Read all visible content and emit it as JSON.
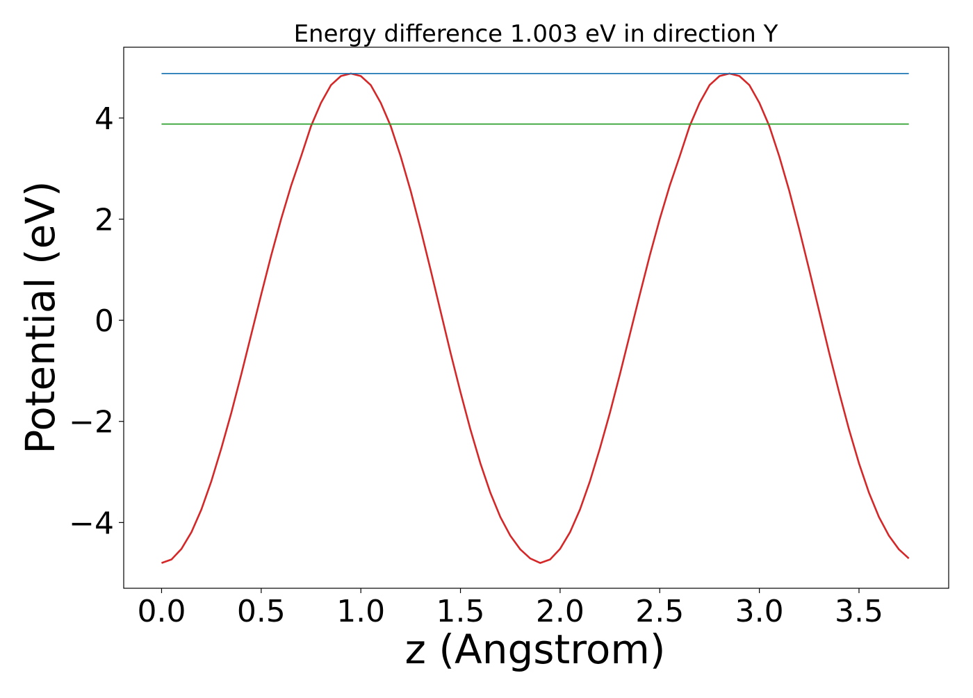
{
  "chart_data": {
    "type": "line",
    "title": "Energy difference 1.003 eV in direction Y",
    "xlabel": "z (Angstrom)",
    "ylabel": "Potential (eV)",
    "xlim": [
      -0.19,
      3.95
    ],
    "ylim": [
      -5.3,
      5.4
    ],
    "x_ticks": [
      0.0,
      0.5,
      1.0,
      1.5,
      2.0,
      2.5,
      3.0,
      3.5
    ],
    "x_tick_labels": [
      "0.0",
      "0.5",
      "1.0",
      "1.5",
      "2.0",
      "2.5",
      "3.0",
      "3.5"
    ],
    "y_ticks": [
      -4,
      -2,
      0,
      2,
      4
    ],
    "y_tick_labels": [
      "−4",
      "−2",
      "0",
      "2",
      "4"
    ],
    "grid": false,
    "legend": "none",
    "series": [
      {
        "color": "#d62728",
        "x": [
          0.0,
          0.05,
          0.1,
          0.15,
          0.2,
          0.25,
          0.3,
          0.35,
          0.4,
          0.45,
          0.5,
          0.55,
          0.6,
          0.65,
          0.7,
          0.75,
          0.8,
          0.85,
          0.9,
          0.95,
          1.0,
          1.05,
          1.1,
          1.15,
          1.2,
          1.25,
          1.3,
          1.35,
          1.4,
          1.45,
          1.5,
          1.55,
          1.6,
          1.65,
          1.7,
          1.75,
          1.8,
          1.85,
          1.9,
          1.95,
          2.0,
          2.05,
          2.1,
          2.15,
          2.2,
          2.25,
          2.3,
          2.35,
          2.4,
          2.45,
          2.5,
          2.55,
          2.6,
          2.65,
          2.7,
          2.75,
          2.8,
          2.85,
          2.9,
          2.95,
          3.0,
          3.05,
          3.1,
          3.15,
          3.2,
          3.25,
          3.3,
          3.35,
          3.4,
          3.45,
          3.5,
          3.55,
          3.6,
          3.65,
          3.7,
          3.75
        ],
        "y": [
          -4.8,
          -4.73,
          -4.52,
          -4.19,
          -3.74,
          -3.18,
          -2.53,
          -1.83,
          -1.07,
          -0.28,
          0.51,
          1.28,
          2.0,
          2.66,
          3.24,
          3.84,
          4.3,
          4.65,
          4.83,
          4.88,
          4.83,
          4.65,
          4.3,
          3.84,
          3.24,
          2.56,
          1.8,
          1.0,
          0.18,
          -0.64,
          -1.42,
          -2.16,
          -2.83,
          -3.41,
          -3.89,
          -4.26,
          -4.53,
          -4.71,
          -4.8,
          -4.73,
          -4.52,
          -4.19,
          -3.74,
          -3.18,
          -2.53,
          -1.83,
          -1.07,
          -0.28,
          0.51,
          1.28,
          2.0,
          2.66,
          3.24,
          3.84,
          4.3,
          4.65,
          4.83,
          4.88,
          4.83,
          4.65,
          4.3,
          3.84,
          3.24,
          2.56,
          1.8,
          1.0,
          0.18,
          -0.64,
          -1.42,
          -2.16,
          -2.83,
          -3.41,
          -3.89,
          -4.26,
          -4.53,
          -4.71
        ]
      },
      {
        "color": "#1f77b4",
        "x": [
          0.0,
          3.75
        ],
        "y": [
          4.88,
          4.88
        ]
      },
      {
        "color": "#2ca02c",
        "x": [
          0.0,
          3.75
        ],
        "y": [
          3.88,
          3.88
        ]
      }
    ]
  }
}
